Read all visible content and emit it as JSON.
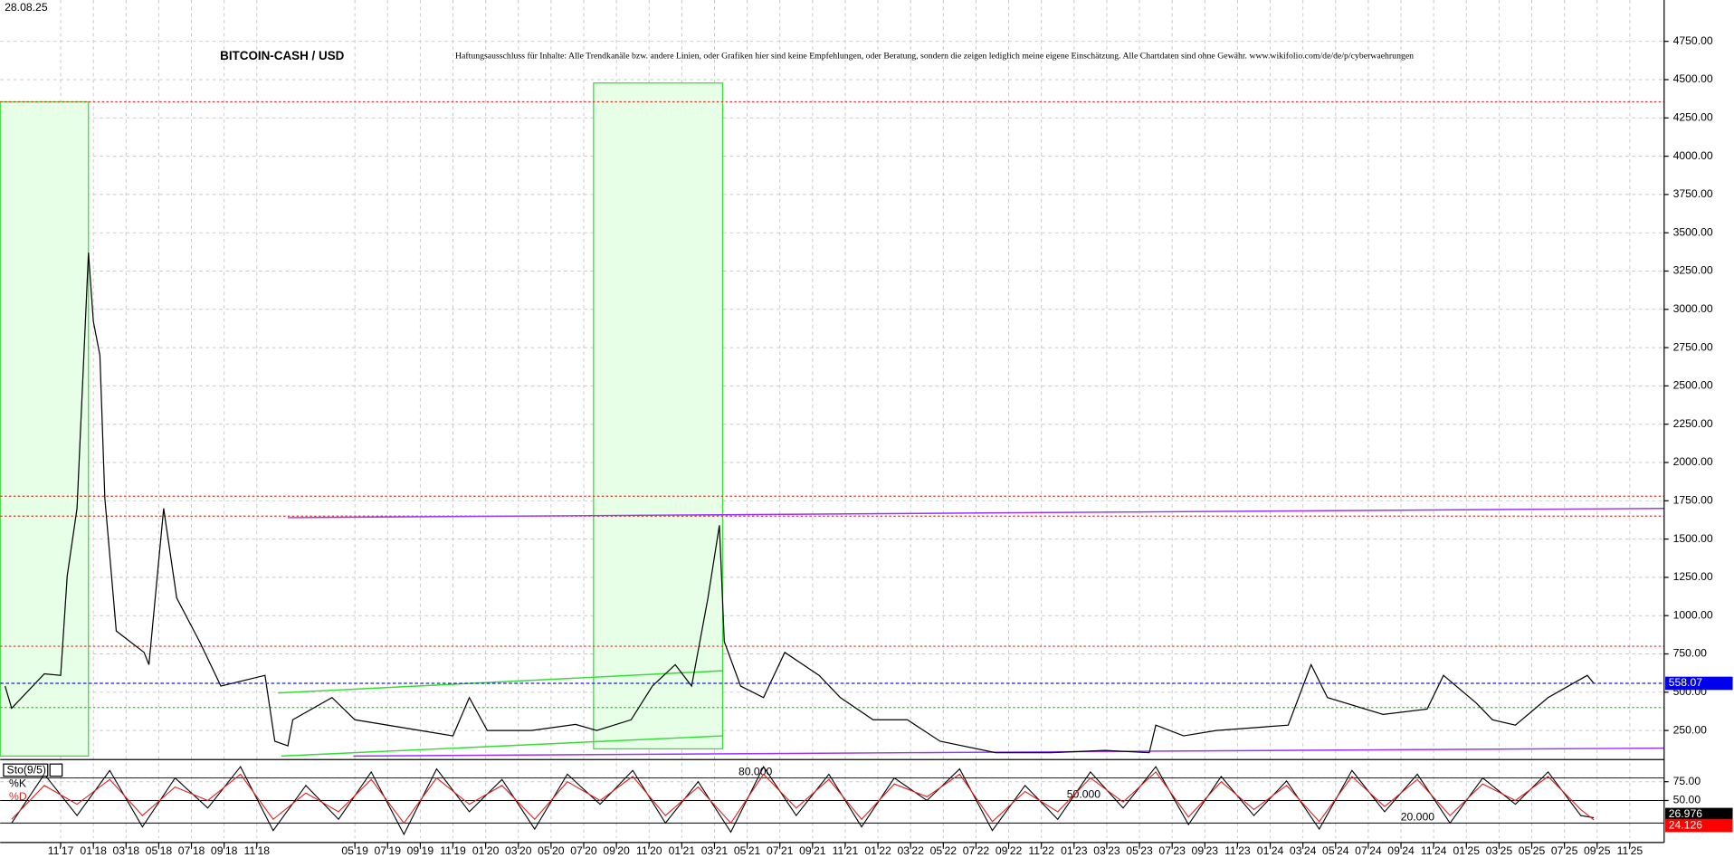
{
  "chart_data": [
    {
      "type": "line",
      "title": "BITCOIN-CASH / USD",
      "subtitle": "Haftungsausschluss für Inhalte: Alle Trendkanäle bzw. andere Linien, oder Grafiken hier sind keine Empfehlungen, oder Beratung, sondern die zeigen lediglich meine eigene Einschätzung. Alle Chartdaten sind ohne Gewähr. www.wikifolio.com/de/de/p/cyberwaehrungen",
      "date_label": "28.08.25",
      "xlim": [
        6.3,
        108.1
      ],
      "ylim": [
        60,
        5020
      ],
      "grid": true,
      "yticks": [
        {
          "value": 250,
          "label": "250.00"
        },
        {
          "value": 500,
          "label": "500.00"
        },
        {
          "value": 750,
          "label": "750.00"
        },
        {
          "value": 1000,
          "label": "1000.00"
        },
        {
          "value": 1250,
          "label": "1250.00"
        },
        {
          "value": 1500,
          "label": "1500.00"
        },
        {
          "value": 1750,
          "label": "1750.00"
        },
        {
          "value": 2000,
          "label": "2000.00"
        },
        {
          "value": 2250,
          "label": "2250.00"
        },
        {
          "value": 2500,
          "label": "2500.00"
        },
        {
          "value": 2750,
          "label": "2750.00"
        },
        {
          "value": 3000,
          "label": "3000.00"
        },
        {
          "value": 3250,
          "label": "3250.00"
        },
        {
          "value": 3500,
          "label": "3500.00"
        },
        {
          "value": 3750,
          "label": "3750.00"
        },
        {
          "value": 4000,
          "label": "4000.00"
        },
        {
          "value": 4250,
          "label": "4250.00"
        },
        {
          "value": 4500,
          "label": "4500.00"
        },
        {
          "value": 4750,
          "label": "4750.00"
        }
      ],
      "x": [
        6.6,
        7.0,
        9.0,
        10.0,
        10.4,
        11.0,
        11.7,
        12.0,
        12.4,
        12.7,
        13.4,
        15.1,
        15.4,
        16.3,
        17.1,
        18.5,
        19.8,
        22.5,
        23.1,
        23.9,
        24.2,
        26.6,
        28.0,
        32.0,
        34.0,
        35.0,
        36.1,
        38.8,
        41.5,
        42.8,
        44.9,
        46.2,
        47.6,
        48.6,
        49.6,
        50.3,
        50.6,
        51.6,
        53.0,
        54.3,
        56.4,
        57.7,
        59.7,
        61.8,
        63.8,
        67.2,
        70.6,
        73.9,
        76.6,
        77.0,
        78.7,
        80.7,
        85.1,
        86.5,
        87.5,
        90.9,
        93.6,
        94.6,
        96.6,
        97.6,
        99.0,
        101.0,
        103.4,
        103.8
      ],
      "series": [
        {
          "name": "BCH",
          "color": "#000000",
          "values": [
            540,
            395,
            620,
            610,
            1260,
            1700,
            3370,
            2920,
            2700,
            1770,
            900,
            760,
            680,
            1700,
            1115,
            830,
            540,
            610,
            180,
            150,
            320,
            465,
            320,
            250,
            215,
            465,
            250,
            250,
            290,
            250,
            320,
            540,
            680,
            540,
            1115,
            1590,
            830,
            540,
            465,
            760,
            610,
            465,
            320,
            320,
            180,
            105,
            105,
            120,
            105,
            285,
            215,
            250,
            285,
            680,
            465,
            355,
            390,
            610,
            430,
            320,
            285,
            465,
            610,
            558
          ]
        }
      ],
      "hlines": [
        {
          "value": 4355,
          "color": "#e03030"
        },
        {
          "value": 1780,
          "color": "#e03030"
        },
        {
          "value": 1650,
          "color": "#e03030"
        },
        {
          "value": 800,
          "color": "#e03030"
        },
        {
          "value": 400,
          "color": "#30c030"
        }
      ],
      "trendlines": [
        {
          "x": [
            23.9,
            108.1
          ],
          "y": [
            1640,
            1700
          ],
          "color": "#9933ff"
        },
        {
          "x": [
            27.9,
            108.1
          ],
          "y": [
            83,
            135
          ],
          "color": "#9933ff"
        },
        {
          "x": [
            23.3,
            50.5
          ],
          "y": [
            495,
            640
          ],
          "color": "#33dd33"
        },
        {
          "x": [
            23.5,
            50.5
          ],
          "y": [
            83,
            215
          ],
          "color": "#33dd33"
        }
      ],
      "zones": [
        {
          "x": [
            6.3,
            11.7
          ],
          "y": [
            83,
            4355
          ]
        },
        {
          "x": [
            42.6,
            50.5
          ],
          "y": [
            130,
            4478
          ]
        }
      ],
      "last_value": 558.07
    },
    {
      "type": "line",
      "indicator_label": "Sto(9/5)",
      "xlim": [
        6.3,
        108.1
      ],
      "ylim": [
        0,
        100
      ],
      "yticks": [
        {
          "value": 75,
          "label": "75.00"
        },
        {
          "value": 50,
          "label": "50.00"
        }
      ],
      "levels": [
        {
          "value": 80,
          "label": "80.000"
        },
        {
          "value": 50,
          "label": "50.000"
        },
        {
          "value": 20,
          "label": "20.000"
        }
      ],
      "xticks": [
        {
          "value": 10,
          "label": "11'17"
        },
        {
          "value": 12,
          "label": "01'18"
        },
        {
          "value": 14,
          "label": "03'18"
        },
        {
          "value": 16,
          "label": "05'18"
        },
        {
          "value": 18,
          "label": "07'18"
        },
        {
          "value": 20,
          "label": "09'18"
        },
        {
          "value": 22,
          "label": "11'18"
        },
        {
          "value": 28,
          "label": "05'19"
        },
        {
          "value": 30,
          "label": "07'19"
        },
        {
          "value": 32,
          "label": "09'19"
        },
        {
          "value": 34,
          "label": "11'19"
        },
        {
          "value": 36,
          "label": "01'20"
        },
        {
          "value": 38,
          "label": "03'20"
        },
        {
          "value": 40,
          "label": "05'20"
        },
        {
          "value": 42,
          "label": "07'20"
        },
        {
          "value": 44,
          "label": "09'20"
        },
        {
          "value": 46,
          "label": "11'20"
        },
        {
          "value": 48,
          "label": "01'21"
        },
        {
          "value": 50,
          "label": "03'21"
        },
        {
          "value": 52,
          "label": "05'21"
        },
        {
          "value": 54,
          "label": "07'21"
        },
        {
          "value": 56,
          "label": "09'21"
        },
        {
          "value": 58,
          "label": "11'21"
        },
        {
          "value": 60,
          "label": "01'22"
        },
        {
          "value": 62,
          "label": "03'22"
        },
        {
          "value": 64,
          "label": "05'22"
        },
        {
          "value": 66,
          "label": "07'22"
        },
        {
          "value": 68,
          "label": "09'22"
        },
        {
          "value": 70,
          "label": "11'22"
        },
        {
          "value": 72,
          "label": "01'23"
        },
        {
          "value": 74,
          "label": "03'23"
        },
        {
          "value": 76,
          "label": "05'23"
        },
        {
          "value": 78,
          "label": "07'23"
        },
        {
          "value": 80,
          "label": "09'23"
        },
        {
          "value": 82,
          "label": "11'23"
        },
        {
          "value": 84,
          "label": "01'24"
        },
        {
          "value": 86,
          "label": "03'24"
        },
        {
          "value": 88,
          "label": "05'24"
        },
        {
          "value": 90,
          "label": "07'24"
        },
        {
          "value": 92,
          "label": "09'24"
        },
        {
          "value": 94,
          "label": "11'24"
        },
        {
          "value": 96,
          "label": "01'25"
        },
        {
          "value": 98,
          "label": "03'25"
        },
        {
          "value": 100,
          "label": "05'25"
        },
        {
          "value": 102,
          "label": "07'25"
        },
        {
          "value": 104,
          "label": "09'25"
        },
        {
          "value": 106,
          "label": "11'25"
        }
      ],
      "x": [
        7,
        9,
        11,
        13,
        15,
        17,
        19,
        21,
        23,
        25,
        27,
        29,
        31,
        33,
        35,
        37,
        39,
        41,
        43,
        45,
        47,
        49,
        51,
        53,
        55,
        57,
        59,
        61,
        63,
        65,
        67,
        69,
        71,
        73,
        75,
        77,
        79,
        81,
        83,
        85,
        87,
        89,
        91,
        93,
        95,
        97,
        99,
        101,
        103,
        103.8
      ],
      "series": [
        {
          "name": "%K",
          "color": "#000000",
          "values": [
            20,
            85,
            30,
            90,
            15,
            80,
            40,
            95,
            10,
            70,
            25,
            88,
            5,
            92,
            35,
            78,
            12,
            85,
            45,
            90,
            20,
            75,
            8,
            95,
            30,
            85,
            15,
            80,
            50,
            92,
            10,
            70,
            25,
            88,
            40,
            95,
            18,
            82,
            30,
            76,
            12,
            90,
            35,
            85,
            20,
            80,
            45,
            88,
            30,
            26.976
          ]
        },
        {
          "name": "%D",
          "color": "#e02020",
          "values": [
            25,
            70,
            45,
            78,
            30,
            68,
            50,
            85,
            25,
            60,
            35,
            78,
            20,
            80,
            45,
            70,
            25,
            75,
            50,
            82,
            30,
            68,
            20,
            85,
            40,
            78,
            25,
            72,
            55,
            85,
            22,
            62,
            35,
            80,
            48,
            88,
            28,
            75,
            38,
            70,
            22,
            82,
            42,
            78,
            30,
            72,
            50,
            82,
            38,
            24.126
          ]
        }
      ]
    }
  ]
}
